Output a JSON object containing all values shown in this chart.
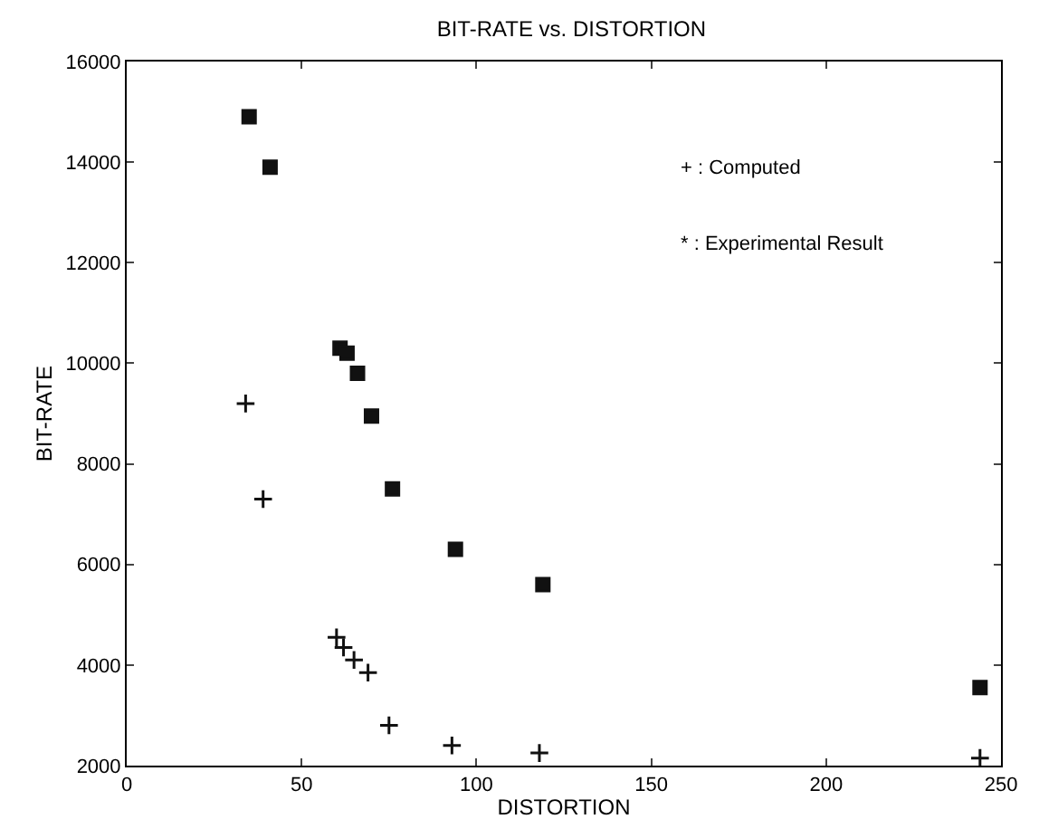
{
  "chart_data": {
    "type": "scatter",
    "title": "BIT-RATE vs. DISTORTION",
    "xlabel": "DISTORTION",
    "ylabel": "BIT-RATE",
    "annotations": [
      "+ : Computed",
      "* : Experimental Result"
    ],
    "xlim": [
      0,
      250
    ],
    "xticks": [
      0,
      50,
      100,
      150,
      200,
      250
    ],
    "ylim": [
      2000,
      16000
    ],
    "yticks": [
      2000,
      4000,
      6000,
      8000,
      10000,
      12000,
      14000,
      16000
    ],
    "series": [
      {
        "color": "#111111",
        "marker": "cross",
        "x": [
          34,
          39,
          60,
          62,
          65,
          69,
          75,
          93,
          118,
          244
        ],
        "values": [
          9200,
          7300,
          4550,
          4350,
          4100,
          3850,
          2800,
          2400,
          2250,
          2150
        ]
      },
      {
        "color": "#111111",
        "marker": "square",
        "x": [
          35,
          41,
          61,
          63,
          66,
          70,
          76,
          94,
          119,
          244
        ],
        "values": [
          14900,
          13900,
          10300,
          10200,
          9800,
          8950,
          7500,
          6300,
          5600,
          3550
        ]
      }
    ]
  }
}
